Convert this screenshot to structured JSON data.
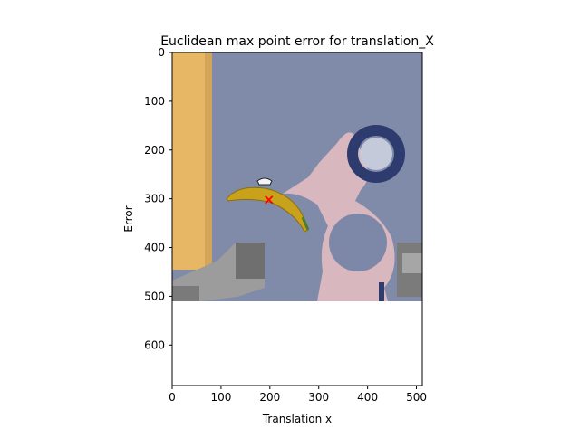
{
  "chart_data": {
    "type": "scatter",
    "title": "Euclidean max point error for translation_X",
    "xlabel": "Translation x",
    "ylabel": "Error",
    "xlim": [
      0,
      512
    ],
    "ylim": [
      683,
      0
    ],
    "y_inverted": true,
    "xticks": [
      0,
      100,
      200,
      300,
      400,
      500
    ],
    "yticks": [
      0,
      100,
      200,
      300,
      400,
      500,
      600
    ],
    "image_extent": {
      "x": [
        0,
        512
      ],
      "y": [
        0,
        512
      ]
    },
    "points": [
      {
        "x": 198,
        "y": 302,
        "marker": "x",
        "color": "#ff0000"
      }
    ],
    "grid": false,
    "legend": "none"
  },
  "background_scene": {
    "wall_color": "#7d88a8",
    "door_color": "#e8b766",
    "figure_color": "#d9b7bf",
    "ring_color": "#2d3b6e",
    "banana_color": "#c9a21c",
    "gripper_color": "#9c9c9c"
  }
}
